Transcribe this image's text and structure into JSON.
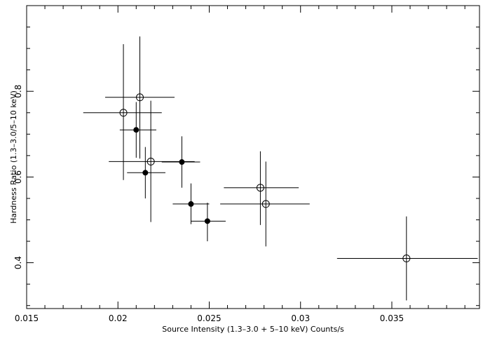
{
  "chart_data": {
    "type": "scatter",
    "xlabel": "Source Intensity (1.3–3.0 + 5–10 keV) Counts/s",
    "ylabel": "Hardness Ratio (1.3–3.0/5–10 keV)",
    "xlim": [
      0.015,
      0.0398
    ],
    "ylim": [
      0.293,
      1.0
    ],
    "x_ticks": [
      0.015,
      0.02,
      0.025,
      0.03,
      0.035
    ],
    "x_tick_labels": [
      "0.015",
      "0.02",
      "0.025",
      "0.03",
      "0.035"
    ],
    "y_ticks": [
      0.4,
      0.6,
      0.8
    ],
    "y_tick_labels": [
      "0.4",
      "0.6",
      "0.8"
    ],
    "grid": false,
    "series": [
      {
        "marker": "filled-circle",
        "points": [
          {
            "x": 0.021,
            "y": 0.71,
            "xlo": 0.0201,
            "xhi": 0.0221,
            "ylo": 0.645,
            "yhi": 0.775
          },
          {
            "x": 0.0215,
            "y": 0.61,
            "xlo": 0.0205,
            "xhi": 0.0226,
            "ylo": 0.55,
            "yhi": 0.67
          },
          {
            "x": 0.0235,
            "y": 0.635,
            "xlo": 0.0224,
            "xhi": 0.0245,
            "ylo": 0.575,
            "yhi": 0.695
          },
          {
            "x": 0.024,
            "y": 0.537,
            "xlo": 0.023,
            "xhi": 0.025,
            "ylo": 0.49,
            "yhi": 0.585
          },
          {
            "x": 0.0249,
            "y": 0.497,
            "xlo": 0.024,
            "xhi": 0.0259,
            "ylo": 0.45,
            "yhi": 0.54
          }
        ]
      },
      {
        "marker": "open-circle",
        "points": [
          {
            "x": 0.0203,
            "y": 0.75,
            "xlo": 0.0181,
            "xhi": 0.0224,
            "ylo": 0.593,
            "yhi": 0.91
          },
          {
            "x": 0.0212,
            "y": 0.786,
            "xlo": 0.0193,
            "xhi": 0.0231,
            "ylo": 0.643,
            "yhi": 0.928
          },
          {
            "x": 0.0218,
            "y": 0.636,
            "xlo": 0.0195,
            "xhi": 0.0242,
            "ylo": 0.495,
            "yhi": 0.778
          },
          {
            "x": 0.0278,
            "y": 0.575,
            "xlo": 0.0258,
            "xhi": 0.0299,
            "ylo": 0.488,
            "yhi": 0.66
          },
          {
            "x": 0.0281,
            "y": 0.537,
            "xlo": 0.0256,
            "xhi": 0.0305,
            "ylo": 0.438,
            "yhi": 0.636
          },
          {
            "x": 0.0358,
            "y": 0.41,
            "xlo": 0.032,
            "xhi": 0.0397,
            "ylo": 0.312,
            "yhi": 0.508
          }
        ]
      }
    ]
  }
}
